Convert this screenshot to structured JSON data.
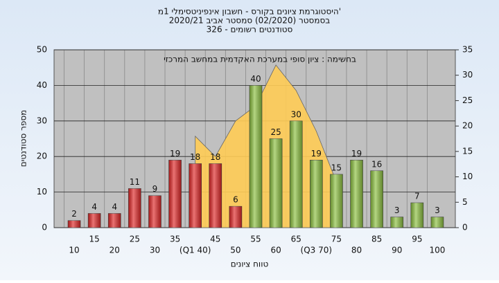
{
  "chart_data": {
    "type": "bar",
    "title": [
      "היסטוגרמת ציונים בקורס - חשבון אינפיניטסימלי 1מ'",
      "בסמסטר  (02/2020)  סמסטר אביב 2020/21",
      "סטודנטים רשומים - 326"
    ],
    "annotation": "בחשימה : ציון סופי במערכת האקדמית במחשב המרכזי",
    "y_label": "מספר סטודנטים",
    "x_label": "טווח ציונים",
    "categories": [
      "10",
      "15",
      "20",
      "25",
      "30",
      "35",
      "(Q1 40)",
      "45",
      "50",
      "55",
      "60",
      "65",
      "(Q3 70)",
      "75",
      "80",
      "85",
      "90",
      "95",
      "100"
    ],
    "values": [
      2,
      4,
      4,
      11,
      9,
      19,
      18,
      18,
      6,
      40,
      25,
      30,
      19,
      15,
      19,
      16,
      3,
      7,
      3
    ],
    "colors": [
      "#e02828",
      "#e02828",
      "#e02828",
      "#e02828",
      "#e02828",
      "#e02828",
      "#e02828",
      "#e02828",
      "#e02828",
      "#8cc040",
      "#8cc040",
      "#8cc040",
      "#8cc040",
      "#8cc040",
      "#8cc040",
      "#8cc040",
      "#8cc040",
      "#8cc040",
      "#8cc040"
    ],
    "area_values": [
      null,
      null,
      null,
      null,
      null,
      null,
      18,
      14,
      21,
      24,
      32,
      27,
      19,
      9,
      null,
      null,
      null,
      null,
      null
    ],
    "area_color": "#ffcc55",
    "area_axis": "y2",
    "ylim": [
      0,
      50
    ],
    "yticks": [
      0,
      10,
      20,
      30,
      40,
      50
    ],
    "y2lim": [
      0,
      35
    ],
    "y2ticks": [
      0,
      5,
      10,
      15,
      20,
      25,
      30,
      35
    ],
    "grid": true
  }
}
